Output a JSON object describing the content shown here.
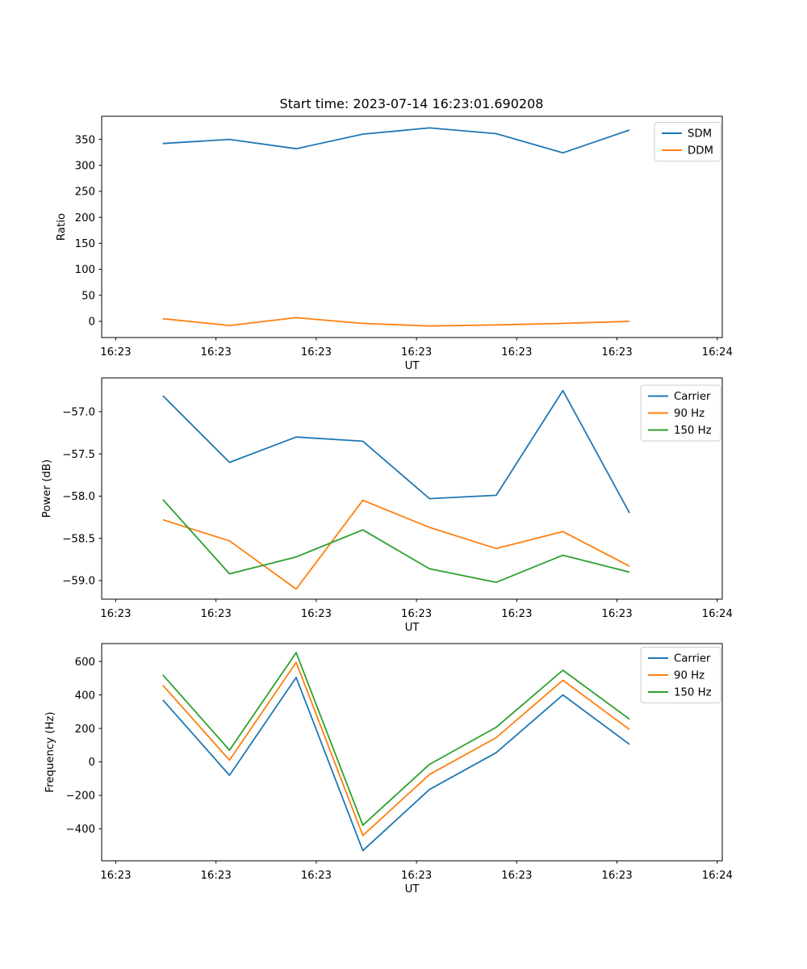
{
  "figure": {
    "title": "Start time: 2023-07-14 16:23:01.690208"
  },
  "chart_data": [
    {
      "type": "line",
      "title": "Start time: 2023-07-14 16:23:01.690208",
      "xlabel": "UT",
      "ylabel": "Ratio",
      "x_seconds": [
        4.7,
        11.35,
        18.0,
        24.65,
        31.3,
        37.95,
        44.6,
        51.25
      ],
      "xlim": [
        -1.4,
        60.5
      ],
      "x_tick_seconds": [
        0,
        10,
        20,
        30,
        40,
        50,
        60
      ],
      "x_tick_labels": [
        "16:23",
        "16:23",
        "16:23",
        "16:23",
        "16:23",
        "16:23",
        "16:24"
      ],
      "y_ticks": [
        0,
        50,
        100,
        150,
        200,
        250,
        300,
        350
      ],
      "y_tick_labels": [
        "0",
        "50",
        "100",
        "150",
        "200",
        "250",
        "300",
        "350"
      ],
      "ylim": [
        -31.2,
        394.4
      ],
      "grid": false,
      "legend_position": "upper right",
      "series": [
        {
          "name": "SDM",
          "color": "#1f77b4",
          "values": [
            342,
            350,
            332,
            360,
            372,
            361,
            324,
            368
          ]
        },
        {
          "name": "DDM",
          "color": "#ff7f0e",
          "values": [
            5,
            -8,
            7,
            -4,
            -9,
            -7,
            -4,
            0
          ]
        }
      ]
    },
    {
      "type": "line",
      "title": "",
      "xlabel": "UT",
      "ylabel": "Power (dB)",
      "x_seconds": [
        4.7,
        11.35,
        18.0,
        24.65,
        31.3,
        37.95,
        44.6,
        51.25
      ],
      "xlim": [
        -1.4,
        60.5
      ],
      "x_tick_seconds": [
        0,
        10,
        20,
        30,
        40,
        50,
        60
      ],
      "x_tick_labels": [
        "16:23",
        "16:23",
        "16:23",
        "16:23",
        "16:23",
        "16:23",
        "16:24"
      ],
      "y_ticks": [
        -57.0,
        -57.5,
        -58.0,
        -58.5,
        -59.0
      ],
      "y_tick_labels": [
        "−57.0",
        "−57.5",
        "−58.0",
        "−58.5",
        "−59.0"
      ],
      "ylim": [
        -59.22,
        -56.6
      ],
      "grid": false,
      "legend_position": "upper right",
      "series": [
        {
          "name": "Carrier",
          "color": "#1f77b4",
          "values": [
            -56.81,
            -57.6,
            -57.3,
            -57.35,
            -58.03,
            -57.99,
            -56.75,
            -58.2
          ]
        },
        {
          "name": "90 Hz",
          "color": "#ff7f0e",
          "values": [
            -58.28,
            -58.53,
            -59.1,
            -58.05,
            -58.37,
            -58.62,
            -58.42,
            -58.83
          ]
        },
        {
          "name": "150 Hz",
          "color": "#2ca02c",
          "values": [
            -58.04,
            -58.92,
            -58.72,
            -58.4,
            -58.86,
            -59.02,
            -58.7,
            -58.9
          ]
        }
      ]
    },
    {
      "type": "line",
      "title": "",
      "xlabel": "UT",
      "ylabel": "Frequency (Hz)",
      "x_seconds": [
        4.7,
        11.35,
        18.0,
        24.65,
        31.3,
        37.95,
        44.6,
        51.25
      ],
      "xlim": [
        -1.4,
        60.5
      ],
      "x_tick_seconds": [
        0,
        10,
        20,
        30,
        40,
        50,
        60
      ],
      "x_tick_labels": [
        "16:23",
        "16:23",
        "16:23",
        "16:23",
        "16:23",
        "16:23",
        "16:24"
      ],
      "y_ticks": [
        -400,
        -200,
        0,
        200,
        400,
        600
      ],
      "y_tick_labels": [
        "−400",
        "−200",
        "0",
        "200",
        "400",
        "600"
      ],
      "ylim": [
        -591,
        707
      ],
      "grid": false,
      "legend_position": "upper right",
      "series": [
        {
          "name": "Carrier",
          "color": "#1f77b4",
          "values": [
            370,
            -80,
            505,
            -530,
            -165,
            55,
            400,
            105
          ]
        },
        {
          "name": "90 Hz",
          "color": "#ff7f0e",
          "values": [
            458,
            10,
            595,
            -440,
            -75,
            145,
            488,
            193
          ]
        },
        {
          "name": "150 Hz",
          "color": "#2ca02c",
          "values": [
            520,
            70,
            653,
            -378,
            -15,
            207,
            548,
            255
          ]
        }
      ]
    }
  ]
}
